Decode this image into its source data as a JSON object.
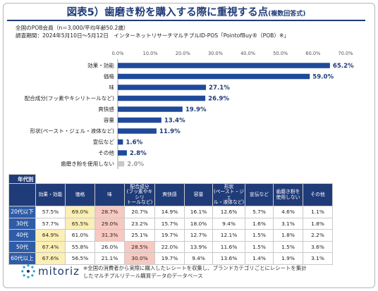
{
  "header": {
    "title": "図表5）歯磨き粉を購入する際に重視する点",
    "subtitle": "(複数回答式)",
    "meta_line1": "全国のPOB会員（n＝3,000/平均年齢50.2歳）",
    "meta_line2": "調査期間：2024年5月10日～5月12日　インターネットリサーチマルチプルID-POS「PointofBuy®（POB）※」"
  },
  "colors": {
    "bar": "#1f4a9a",
    "bar_gray": "#c8c8c8",
    "header": "#1f3b78",
    "highlight_yellow": "#fcefb4",
    "highlight_red": "#f7c9c0"
  },
  "chart_data": {
    "type": "bar",
    "orientation": "horizontal",
    "categories": [
      "効果・効能",
      "価格",
      "味",
      "配合成分(フッ素やキシリトールなど)",
      "爽快感",
      "容量",
      "形状(ペースト・ジェル・液体など)",
      "宣伝など",
      "その他",
      "歯磨き粉を使用しない"
    ],
    "values": [
      65.2,
      59.0,
      27.1,
      26.9,
      19.9,
      13.4,
      11.9,
      1.6,
      2.8,
      2.0
    ],
    "value_labels": [
      "65.2%",
      "59.0%",
      "27.1%",
      "26.9%",
      "19.9%",
      "13.4%",
      "11.9%",
      "1.6%",
      "2.8%",
      "2.0%"
    ],
    "gray_index": 9,
    "ticks": [
      "0.0%",
      "10.0%",
      "20.0%",
      "30.0%",
      "40.0%",
      "50.0%",
      "60.0%",
      "70.0%"
    ],
    "xlim": [
      0,
      70
    ],
    "grid": false
  },
  "table": {
    "section_label": "年代別",
    "headers": [
      "効果・効能",
      "価格",
      "味",
      "配合成分\n(フッ素やキシリ\nトールなど)",
      "爽快感",
      "容量",
      "形状\n(ペースト・ジェ\nル・液体など)",
      "宣伝など",
      "歯磨き粉を\n使用しない",
      "その他"
    ],
    "rows": [
      {
        "label": "20代以下",
        "cells": [
          "57.5%",
          "69.0%",
          "28.7%",
          "20.7%",
          "14.9%",
          "16.1%",
          "12.6%",
          "5.7%",
          "4.6%",
          "1.1%"
        ],
        "hl": [
          "",
          "y",
          "r",
          "",
          "",
          "",
          "",
          "",
          "",
          ""
        ]
      },
      {
        "label": "30代",
        "cells": [
          "57.7%",
          "65.5%",
          "29.0%",
          "23.2%",
          "15.7%",
          "18.0%",
          "9.4%",
          "1.6%",
          "3.1%",
          "1.8%"
        ],
        "hl": [
          "",
          "y",
          "r",
          "",
          "",
          "",
          "",
          "",
          "",
          ""
        ]
      },
      {
        "label": "40代",
        "cells": [
          "64.9%",
          "61.0%",
          "31.3%",
          "25.1%",
          "19.7%",
          "12.7%",
          "12.1%",
          "1.5%",
          "1.8%",
          "2.2%"
        ],
        "hl": [
          "y",
          "",
          "r",
          "",
          "",
          "",
          "",
          "",
          "",
          ""
        ]
      },
      {
        "label": "50代",
        "cells": [
          "67.4%",
          "55.8%",
          "26.0%",
          "28.5%",
          "22.0%",
          "13.9%",
          "11.6%",
          "1.5%",
          "1.5%",
          "3.6%"
        ],
        "hl": [
          "y",
          "",
          "",
          "r",
          "",
          "",
          "",
          "",
          "",
          ""
        ]
      },
      {
        "label": "60代以上",
        "cells": [
          "67.6%",
          "56.5%",
          "21.1%",
          "30.0%",
          "19.7%",
          "9.4%",
          "13.6%",
          "1.4%",
          "1.9%",
          "3.1%"
        ],
        "hl": [
          "y",
          "",
          "",
          "r",
          "",
          "",
          "",
          "",
          "",
          ""
        ]
      }
    ]
  },
  "footer": {
    "logo_text": "mitoriz",
    "note_line1": "※全国の消費者から実際に購入したレシートを収集し、ブランドカテゴリごとにレシートを集計",
    "note_line2": "したマルチプルリテール購買データのデータベース"
  }
}
